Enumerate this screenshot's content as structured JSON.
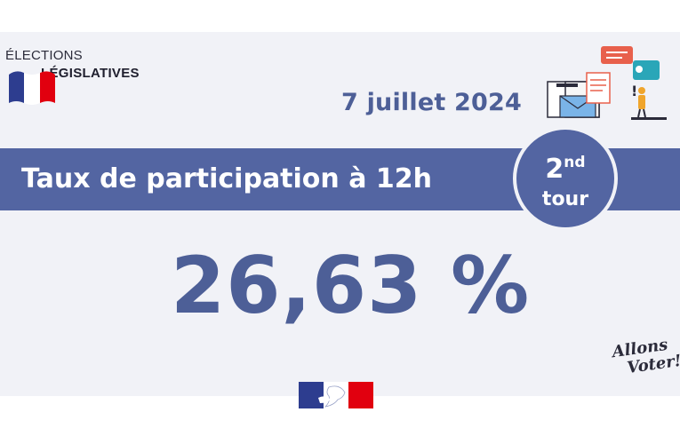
{
  "header": {
    "line1": "ÉLECTIONS",
    "line2": "LÉGISLATIVES",
    "date": "7 juillet 2024"
  },
  "banner": {
    "title": "Taux de participation à 12h"
  },
  "round_badge": {
    "number": "2",
    "suffix": "nd",
    "label": "tour"
  },
  "participation": {
    "rate": "26,63 %"
  },
  "slogan": {
    "line1": "Allons",
    "line2": "Voter!"
  },
  "colors": {
    "primary_blue": "#5365a2",
    "text_blue": "#4d5f97",
    "background": "#f1f2f7",
    "flag_blue": "#2d3d8f",
    "flag_red": "#e1000f"
  },
  "icons": {
    "flag": "french-flag-icon",
    "illustration": "voting-illustration-icon",
    "government_logo": "marianne-logo-icon"
  }
}
